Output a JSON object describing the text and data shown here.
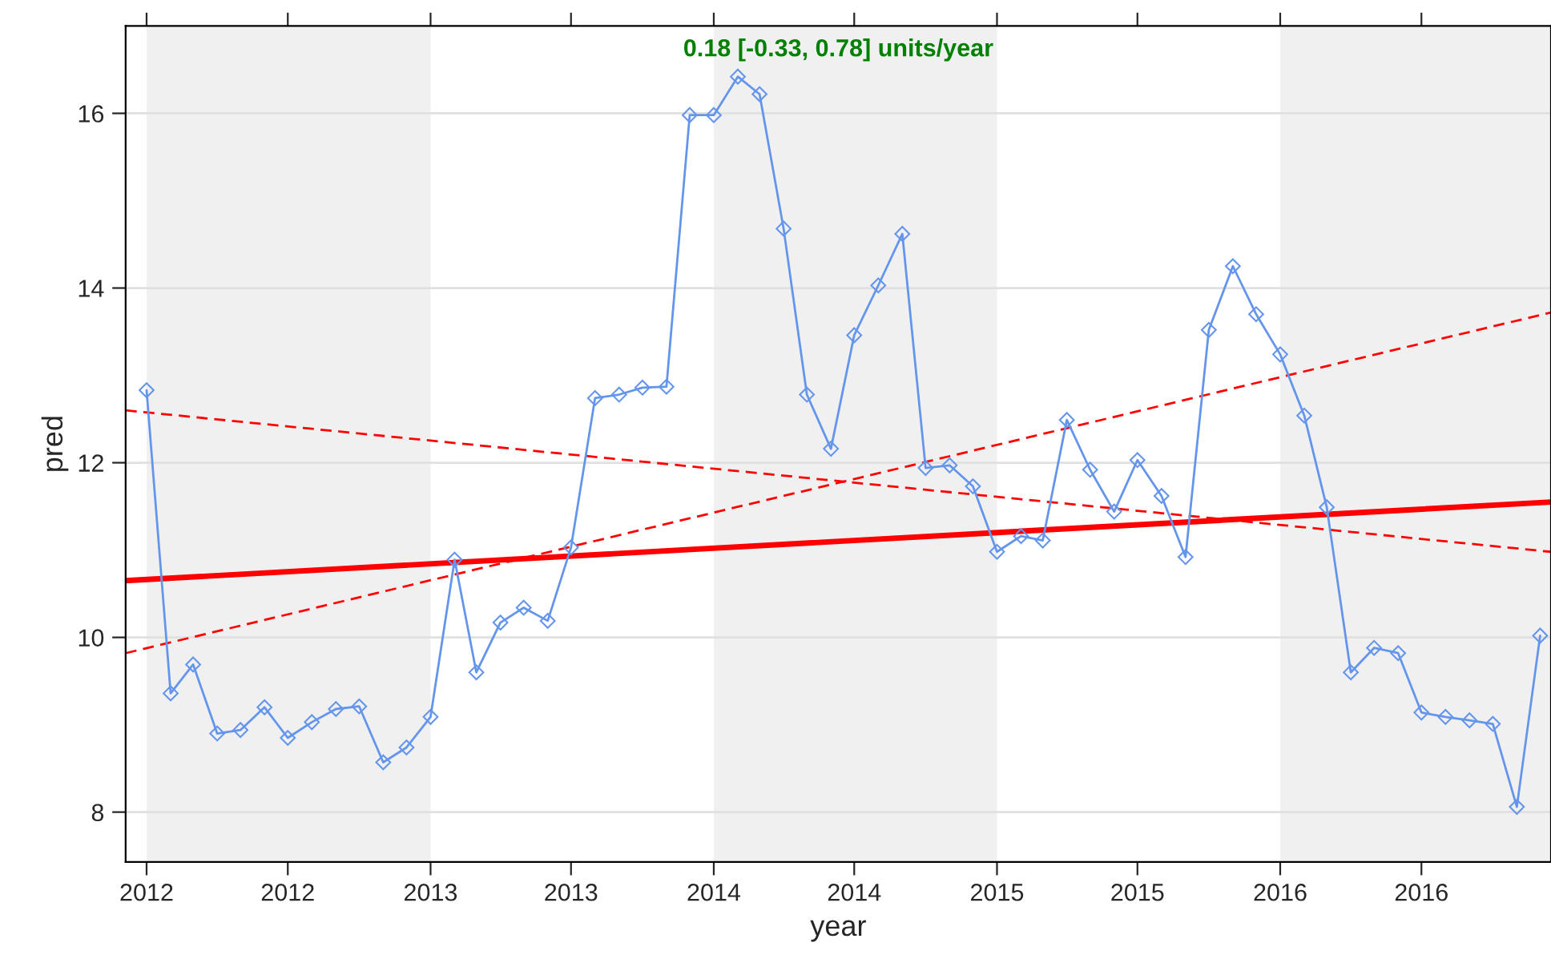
{
  "chart_data": {
    "type": "line",
    "xlabel": "year",
    "ylabel": "pred",
    "annotations": [
      "0.18 [-0.33, 0.78] units/year"
    ],
    "x": [
      "2012-01",
      "2012-02",
      "2012-03",
      "2012-04",
      "2012-05",
      "2012-06",
      "2012-07",
      "2012-08",
      "2012-09",
      "2012-10",
      "2012-11",
      "2012-12",
      "2013-01",
      "2013-02",
      "2013-03",
      "2013-04",
      "2013-05",
      "2013-06",
      "2013-07",
      "2013-08",
      "2013-09",
      "2013-10",
      "2013-11",
      "2013-12",
      "2014-01",
      "2014-02",
      "2014-03",
      "2014-04",
      "2014-05",
      "2014-06",
      "2014-07",
      "2014-08",
      "2014-09",
      "2014-10",
      "2014-11",
      "2014-12",
      "2015-01",
      "2015-02",
      "2015-03",
      "2015-04",
      "2015-05",
      "2015-06",
      "2015-07",
      "2015-08",
      "2015-09",
      "2015-10",
      "2015-11",
      "2015-12",
      "2016-01",
      "2016-02",
      "2016-03",
      "2016-04",
      "2016-05",
      "2016-06",
      "2016-07",
      "2016-08",
      "2016-09",
      "2016-10",
      "2016-11",
      "2016-12"
    ],
    "series": [
      {
        "color": "#6495ed",
        "marker": "diamond",
        "line_style": "solid",
        "values": [
          12.83,
          9.36,
          9.69,
          8.9,
          8.94,
          9.2,
          8.85,
          9.03,
          9.18,
          9.21,
          8.57,
          8.74,
          9.09,
          10.89,
          9.6,
          10.17,
          10.34,
          10.19,
          11.03,
          12.74,
          12.78,
          12.86,
          12.87,
          15.98,
          15.98,
          16.42,
          16.22,
          14.68,
          12.78,
          12.16,
          13.46,
          14.03,
          14.62,
          11.94,
          11.97,
          11.73,
          10.98,
          11.16,
          11.11,
          12.49,
          11.92,
          11.44,
          12.03,
          11.62,
          10.92,
          13.52,
          14.25,
          13.7,
          13.24,
          12.54,
          11.49,
          9.6,
          9.88,
          9.82,
          9.14,
          9.09,
          9.05,
          9.01,
          8.06,
          10.02
        ]
      },
      {
        "color": "#ff0000",
        "marker": "none",
        "line_style": "solid",
        "x": [
          "2011-12-05",
          "2016-12-15"
        ],
        "values": [
          10.65,
          11.55
        ]
      },
      {
        "color": "#ff0000",
        "marker": "none",
        "line_style": "dashed",
        "x": [
          "2011-12-05",
          "2016-12-15"
        ],
        "values": [
          9.82,
          13.72
        ]
      },
      {
        "color": "#ff0000",
        "marker": "none",
        "line_style": "dashed",
        "x": [
          "2011-12-05",
          "2016-12-15"
        ],
        "values": [
          12.6,
          10.98
        ]
      }
    ],
    "bands": [
      {
        "axis": "x",
        "from": "2012-01-01",
        "to": "2013-01-01",
        "color": "#f0f0f0"
      },
      {
        "axis": "x",
        "from": "2014-01-01",
        "to": "2015-01-01",
        "color": "#f0f0f0"
      },
      {
        "axis": "x",
        "from": "2016-01-01",
        "to": "2016-12-15",
        "color": "#f0f0f0"
      }
    ],
    "xlim": [
      "2011-12-05",
      "2016-12-15"
    ],
    "xticks": [
      {
        "value": "2012-01-01",
        "label": "2012"
      },
      {
        "value": "2012-07-01",
        "label": "2012"
      },
      {
        "value": "2013-01-01",
        "label": "2013"
      },
      {
        "value": "2013-07-01",
        "label": "2013"
      },
      {
        "value": "2014-01-01",
        "label": "2014"
      },
      {
        "value": "2014-07-01",
        "label": "2014"
      },
      {
        "value": "2015-01-01",
        "label": "2015"
      },
      {
        "value": "2015-07-01",
        "label": "2015"
      },
      {
        "value": "2016-01-01",
        "label": "2016"
      },
      {
        "value": "2016-07-01",
        "label": "2016"
      }
    ],
    "ylim": [
      7.43,
      17.0
    ],
    "yticks": [
      8,
      10,
      12,
      14,
      16
    ],
    "grid": "y",
    "legend": false
  }
}
